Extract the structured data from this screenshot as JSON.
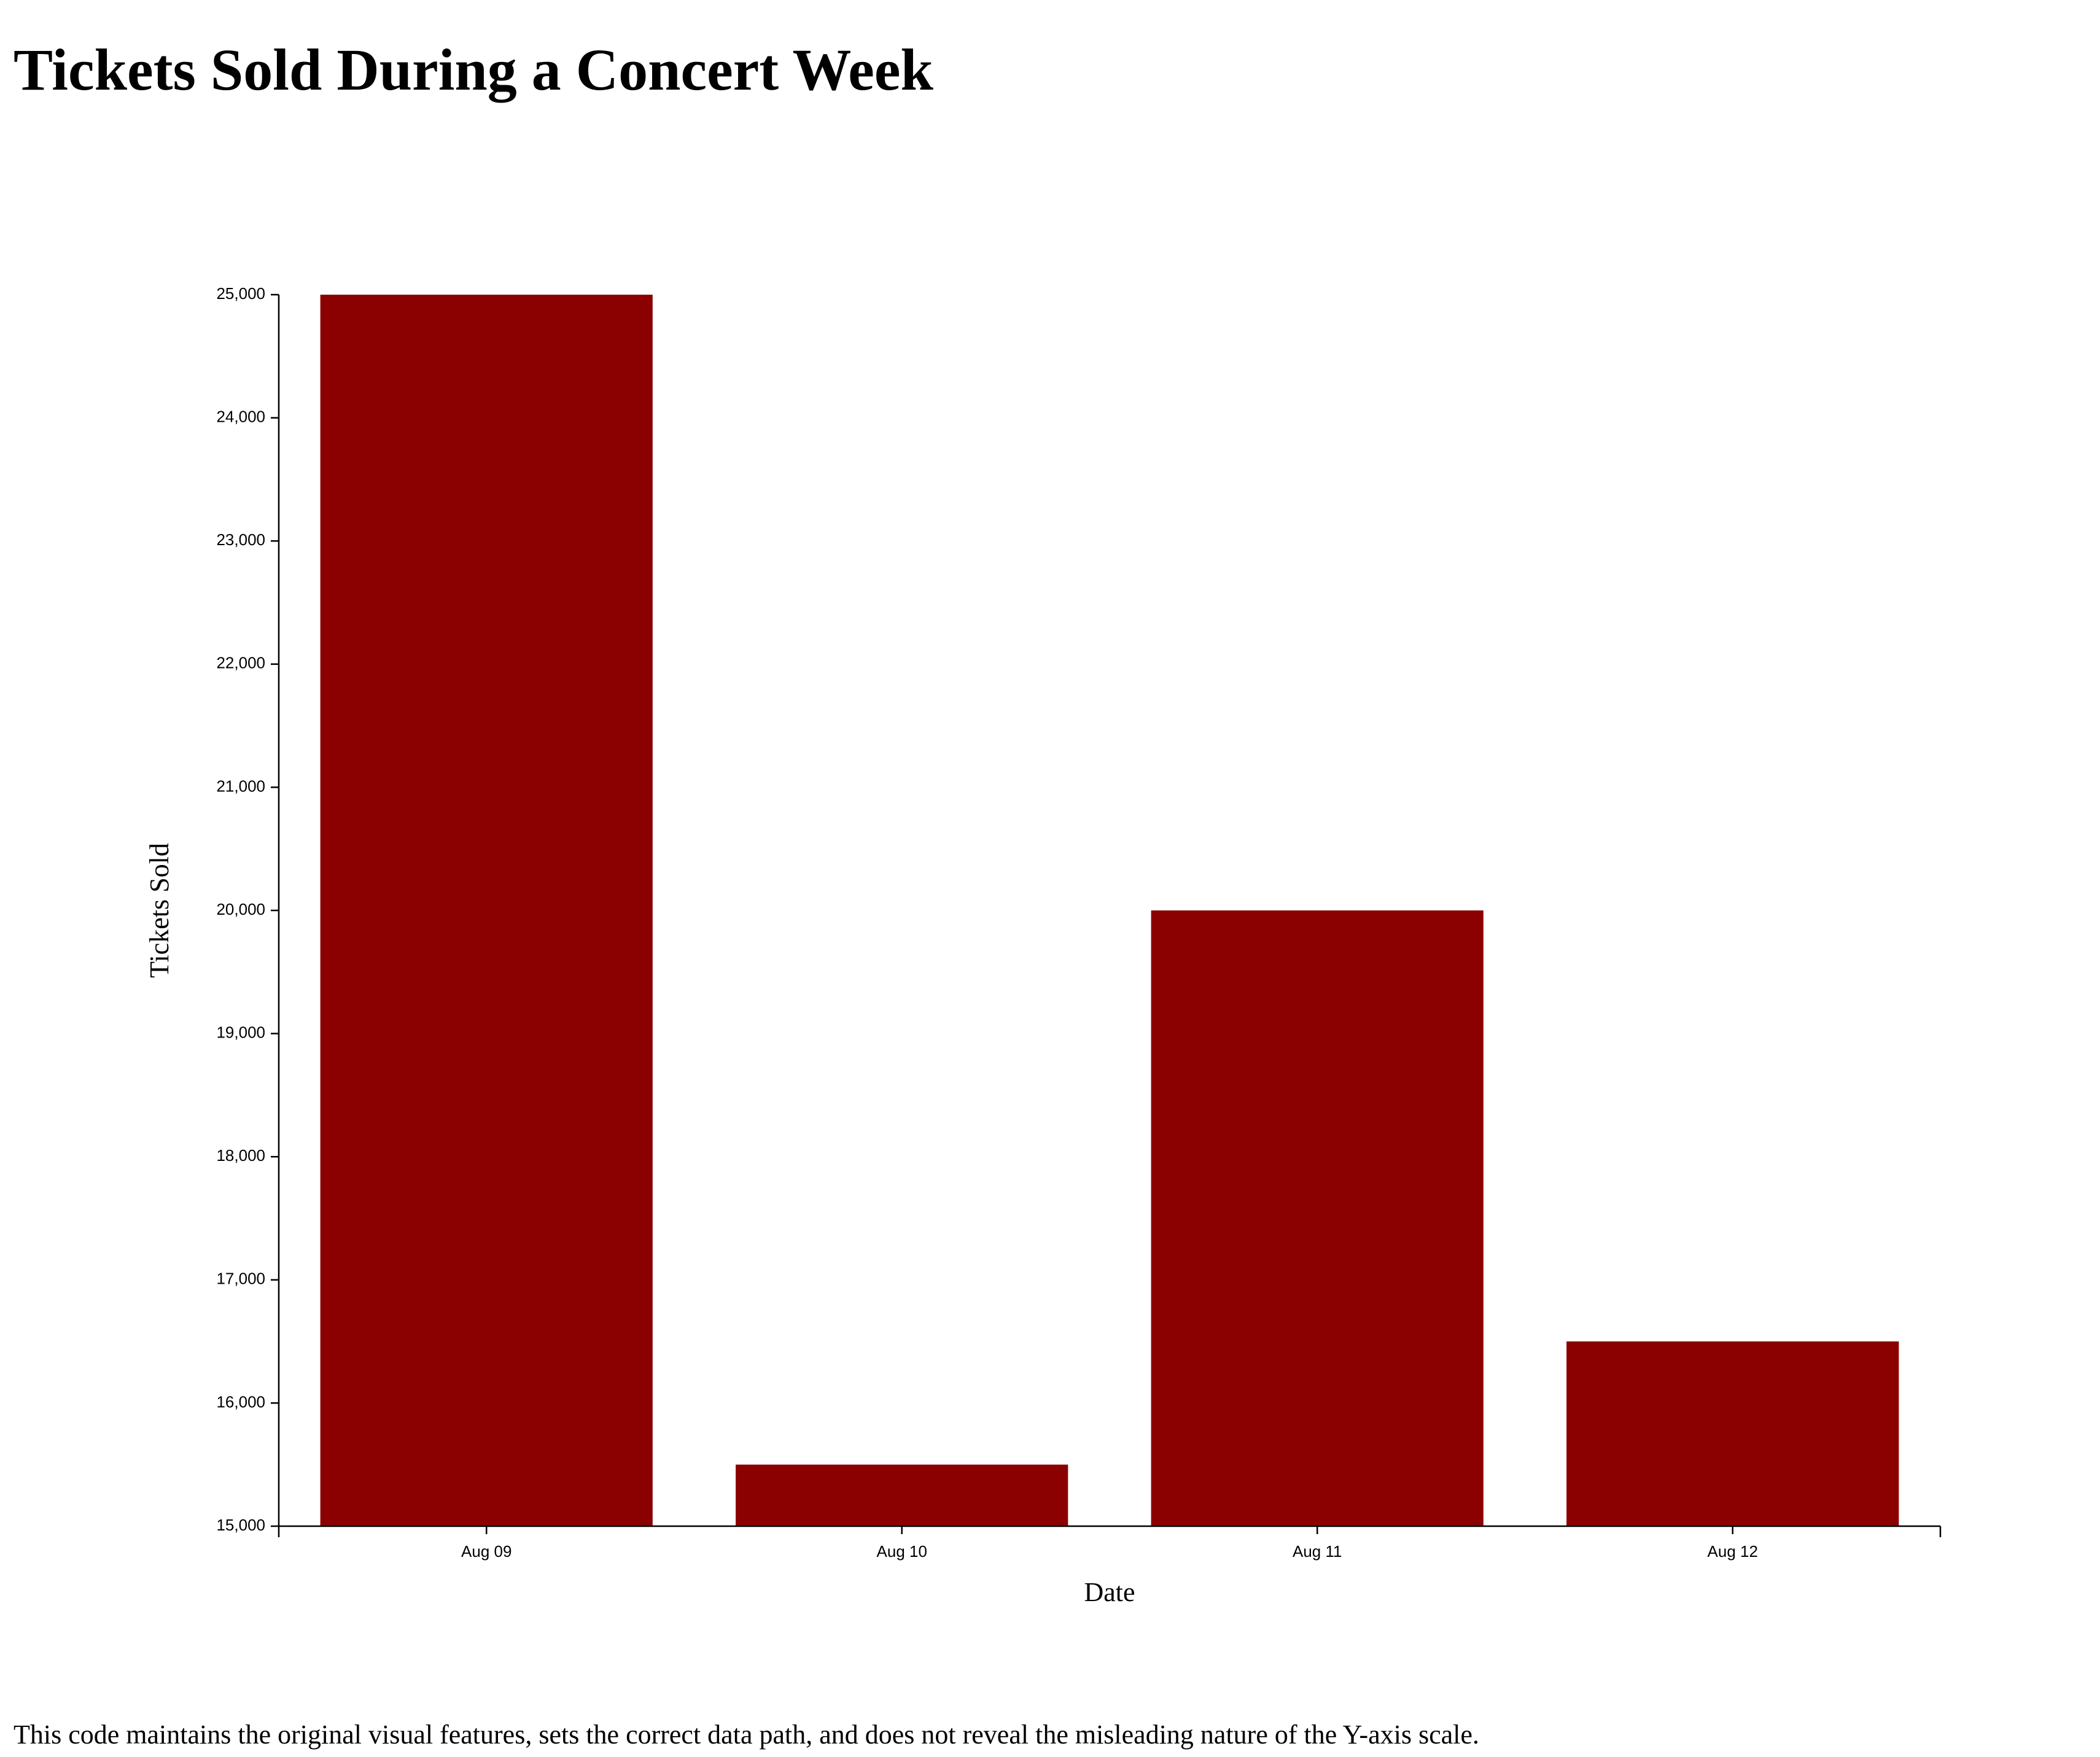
{
  "page": {
    "title": "Tickets Sold During a Concert Week",
    "footer_note": "This code maintains the original visual features, sets the correct data path, and does not reveal the misleading nature of the Y-axis scale."
  },
  "chart_data": {
    "type": "bar",
    "categories": [
      "Aug 09",
      "Aug 10",
      "Aug 11",
      "Aug 12"
    ],
    "values": [
      25000,
      15500,
      20000,
      16500
    ],
    "xlabel": "Date",
    "ylabel": "Tickets Sold",
    "ylim": [
      15000,
      25000
    ],
    "yticks": [
      15000,
      16000,
      17000,
      18000,
      19000,
      20000,
      21000,
      22000,
      23000,
      24000,
      25000
    ],
    "ytick_labels": [
      "15,000",
      "16,000",
      "17,000",
      "18,000",
      "19,000",
      "20,000",
      "21,000",
      "22,000",
      "23,000",
      "24,000",
      "25,000"
    ],
    "bar_color": "#8b0000",
    "grid": false,
    "legend": "none"
  }
}
